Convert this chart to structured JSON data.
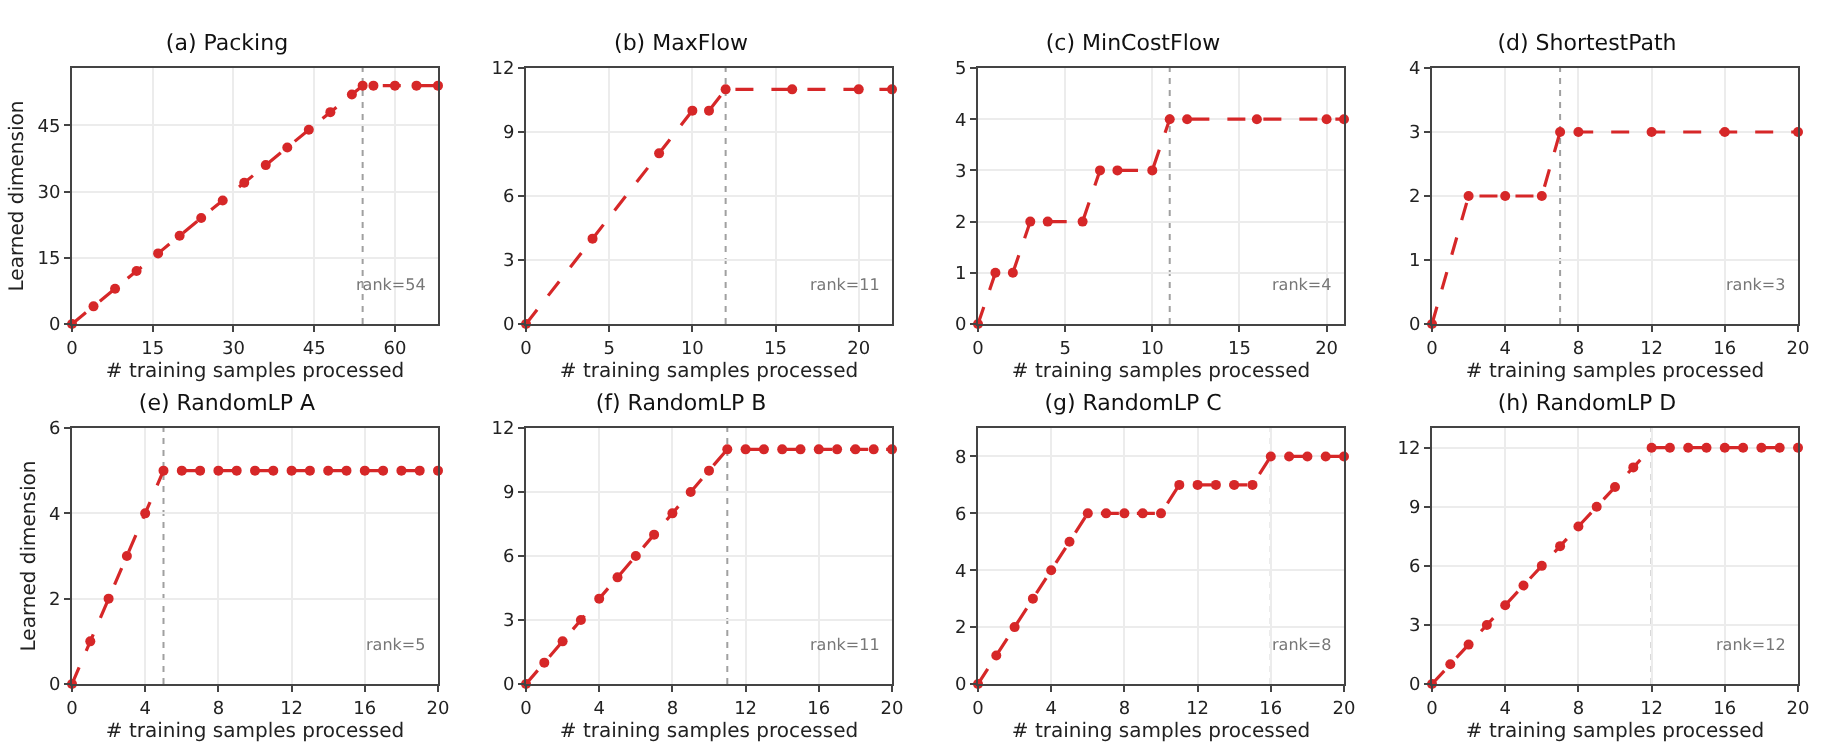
{
  "chart_data": [
    {
      "type": "line",
      "title": "(a) Packing",
      "xlabel": "# training samples processed",
      "ylabel": "Learned dimension",
      "x": [
        0,
        4,
        8,
        12,
        16,
        20,
        24,
        28,
        32,
        36,
        40,
        44,
        48,
        52,
        54,
        56,
        60,
        64,
        68
      ],
      "series": [
        {
          "color": "#d62728",
          "values": [
            0,
            4,
            8,
            12,
            16,
            20,
            24,
            28,
            32,
            36,
            40,
            44,
            48,
            52,
            54,
            54,
            54,
            54,
            54
          ]
        }
      ],
      "xlim": [
        0,
        68
      ],
      "xticks": [
        0,
        15,
        30,
        45,
        60
      ],
      "ylim": [
        0,
        58
      ],
      "yticks": [
        0,
        15,
        30,
        45
      ],
      "grid": true,
      "marker": "circle",
      "line_style": "dashed",
      "ref_lines": [
        {
          "axis": "x",
          "value": 54,
          "color": "#a0a0a0",
          "line_style": "dotted"
        }
      ],
      "annotations": [
        "rank=54"
      ]
    },
    {
      "type": "line",
      "title": "(b) MaxFlow",
      "xlabel": "# training samples processed",
      "x": [
        0,
        4,
        8,
        10,
        11,
        12,
        16,
        20,
        22
      ],
      "series": [
        {
          "color": "#d62728",
          "values": [
            0,
            4,
            8,
            10,
            10,
            11,
            11,
            11,
            11
          ]
        }
      ],
      "xlim": [
        0,
        22
      ],
      "xticks": [
        0,
        5,
        10,
        15,
        20
      ],
      "ylim": [
        0,
        12
      ],
      "yticks": [
        0,
        3,
        6,
        9,
        12
      ],
      "grid": true,
      "marker": "circle",
      "line_style": "dashed",
      "ref_lines": [
        {
          "axis": "x",
          "value": 12,
          "color": "#a0a0a0",
          "line_style": "dotted"
        }
      ],
      "annotations": [
        "rank=11"
      ]
    },
    {
      "type": "line",
      "title": "(c) MinCostFlow",
      "xlabel": "# training samples processed",
      "x": [
        0,
        1,
        2,
        3,
        4,
        6,
        7,
        8,
        10,
        11,
        12,
        16,
        20,
        21
      ],
      "series": [
        {
          "color": "#d62728",
          "values": [
            0,
            1,
            1,
            2,
            2,
            2,
            3,
            3,
            3,
            4,
            4,
            4,
            4,
            4
          ]
        }
      ],
      "xlim": [
        0,
        21
      ],
      "xticks": [
        0,
        5,
        10,
        15,
        20
      ],
      "ylim": [
        0,
        5
      ],
      "yticks": [
        0,
        1,
        2,
        3,
        4,
        5
      ],
      "grid": true,
      "marker": "circle",
      "line_style": "dashed",
      "ref_lines": [
        {
          "axis": "x",
          "value": 11,
          "color": "#a0a0a0",
          "line_style": "dotted"
        }
      ],
      "annotations": [
        "rank=4"
      ]
    },
    {
      "type": "line",
      "title": "(d) ShortestPath",
      "xlabel": "# training samples processed",
      "x": [
        0,
        2,
        4,
        6,
        7,
        8,
        12,
        16,
        20
      ],
      "series": [
        {
          "color": "#d62728",
          "values": [
            0,
            2,
            2,
            2,
            3,
            3,
            3,
            3,
            3
          ]
        }
      ],
      "xlim": [
        0,
        20
      ],
      "xticks": [
        0,
        4,
        8,
        12,
        16,
        20
      ],
      "ylim": [
        0,
        4
      ],
      "yticks": [
        0,
        1,
        2,
        3,
        4
      ],
      "grid": true,
      "marker": "circle",
      "line_style": "dashed",
      "ref_lines": [
        {
          "axis": "x",
          "value": 7,
          "color": "#a0a0a0",
          "line_style": "dotted"
        }
      ],
      "annotations": [
        "rank=3"
      ]
    },
    {
      "type": "line",
      "title": "(e) RandomLP A",
      "xlabel": "# training samples processed",
      "ylabel": "Learned dimension",
      "x": [
        0,
        1,
        2,
        3,
        4,
        5,
        6,
        7,
        8,
        9,
        10,
        11,
        12,
        13,
        14,
        15,
        16,
        17,
        18,
        19,
        20
      ],
      "series": [
        {
          "color": "#d62728",
          "values": [
            0,
            1,
            2,
            3,
            4,
            5,
            5,
            5,
            5,
            5,
            5,
            5,
            5,
            5,
            5,
            5,
            5,
            5,
            5,
            5,
            5
          ]
        }
      ],
      "xlim": [
        0,
        20
      ],
      "xticks": [
        0,
        4,
        8,
        12,
        16,
        20
      ],
      "ylim": [
        0,
        6
      ],
      "yticks": [
        0,
        2,
        4,
        6
      ],
      "grid": true,
      "marker": "circle",
      "line_style": "dashed",
      "ref_lines": [
        {
          "axis": "x",
          "value": 5,
          "color": "#a0a0a0",
          "line_style": "dotted"
        }
      ],
      "annotations": [
        "rank=5"
      ]
    },
    {
      "type": "line",
      "title": "(f) RandomLP B",
      "xlabel": "# training samples processed",
      "x": [
        0,
        1,
        2,
        3,
        4,
        5,
        6,
        7,
        8,
        9,
        10,
        11,
        12,
        13,
        14,
        15,
        16,
        17,
        18,
        19,
        20
      ],
      "series": [
        {
          "color": "#d62728",
          "values": [
            0,
            1,
            2,
            3,
            4,
            5,
            6,
            7,
            8,
            9,
            10,
            11,
            11,
            11,
            11,
            11,
            11,
            11,
            11,
            11,
            11
          ]
        }
      ],
      "xlim": [
        0,
        20
      ],
      "xticks": [
        0,
        4,
        8,
        12,
        16,
        20
      ],
      "ylim": [
        0,
        12
      ],
      "yticks": [
        0,
        3,
        6,
        9,
        12
      ],
      "grid": true,
      "marker": "circle",
      "line_style": "dashed",
      "ref_lines": [
        {
          "axis": "x",
          "value": 11,
          "color": "#a0a0a0",
          "line_style": "dotted"
        }
      ],
      "annotations": [
        "rank=11"
      ]
    },
    {
      "type": "line",
      "title": "(g) RandomLP C",
      "xlabel": "# training samples processed",
      "x": [
        0,
        1,
        2,
        3,
        4,
        5,
        6,
        7,
        8,
        9,
        10,
        11,
        12,
        13,
        14,
        15,
        16,
        17,
        18,
        19,
        20
      ],
      "series": [
        {
          "color": "#d62728",
          "values": [
            0,
            1,
            2,
            3,
            4,
            5,
            6,
            6,
            6,
            6,
            6,
            7,
            7,
            7,
            7,
            7,
            8,
            8,
            8,
            8,
            8
          ]
        }
      ],
      "xlim": [
        0,
        20
      ],
      "xticks": [
        0,
        4,
        8,
        12,
        16,
        20
      ],
      "ylim": [
        0,
        9
      ],
      "yticks": [
        0,
        2,
        4,
        6,
        8
      ],
      "grid": true,
      "marker": "circle",
      "line_style": "dashed",
      "ref_lines": [
        {
          "axis": "x",
          "value": 16,
          "color": "#a0a0a0",
          "line_style": "dotted"
        }
      ],
      "annotations": [
        "rank=8"
      ]
    },
    {
      "type": "line",
      "title": "(h) RandomLP D",
      "xlabel": "# training samples processed",
      "x": [
        0,
        1,
        2,
        3,
        4,
        5,
        6,
        7,
        8,
        9,
        10,
        11,
        12,
        13,
        14,
        15,
        16,
        17,
        18,
        19,
        20
      ],
      "series": [
        {
          "color": "#d62728",
          "values": [
            0,
            1,
            2,
            3,
            4,
            5,
            6,
            7,
            8,
            9,
            10,
            11,
            12,
            12,
            12,
            12,
            12,
            12,
            12,
            12,
            12
          ]
        }
      ],
      "xlim": [
        0,
        20
      ],
      "xticks": [
        0,
        4,
        8,
        12,
        16,
        20
      ],
      "ylim": [
        0,
        13
      ],
      "yticks": [
        0,
        3,
        6,
        9,
        12
      ],
      "grid": true,
      "marker": "circle",
      "line_style": "dashed",
      "ref_lines": [
        {
          "axis": "x",
          "value": 12,
          "color": "#a0a0a0",
          "line_style": "dotted"
        }
      ],
      "annotations": [
        "rank=12"
      ]
    }
  ]
}
